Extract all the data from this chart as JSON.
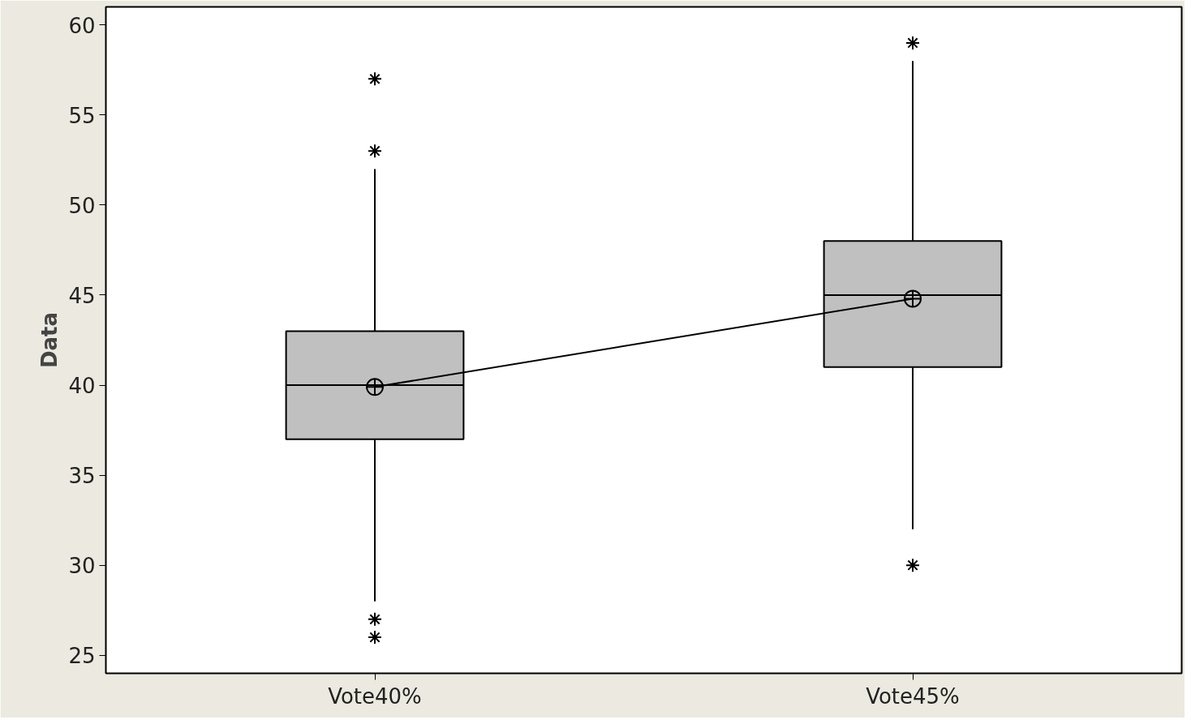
{
  "chart_data": {
    "type": "box",
    "ylabel": "Data",
    "categories": [
      "Vote40%",
      "Vote45%"
    ],
    "boxes": [
      {
        "low": 28,
        "q1": 37,
        "median": 40,
        "q3": 43,
        "high": 52,
        "outliers": [
          53,
          57,
          27,
          26
        ]
      },
      {
        "low": 32,
        "q1": 41,
        "median": 45,
        "q3": 48,
        "high": 58,
        "outliers": [
          59,
          30
        ]
      }
    ],
    "color": "#c0c0c0",
    "series": [
      {
        "type": "line",
        "color": "#000000",
        "values": [
          39.9,
          44.8
        ],
        "marker": "circle"
      }
    ],
    "ylim": [
      24,
      61
    ],
    "yticks": [
      25,
      30,
      35,
      40,
      45,
      50,
      55,
      60
    ],
    "grid": false
  }
}
